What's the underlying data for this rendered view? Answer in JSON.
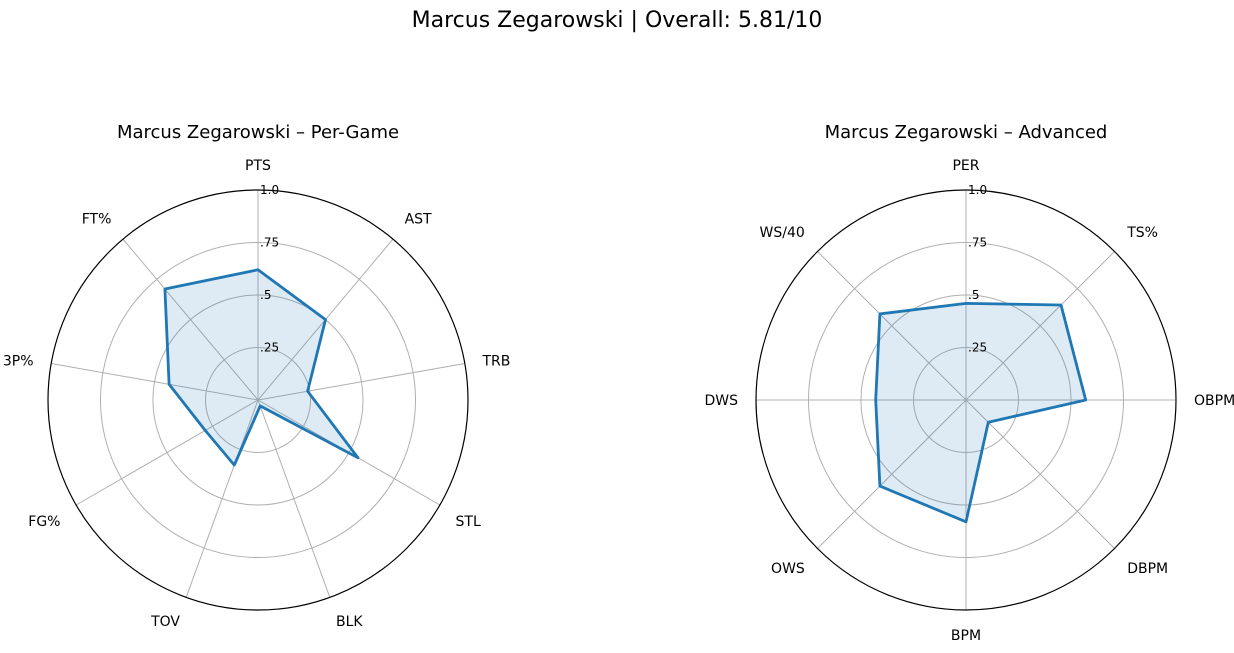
{
  "suptitle": "Marcus Zegarowski | Overall: 5.81/10",
  "colors": {
    "line": "#1f77b4",
    "fill": "#1f77b4",
    "grid": "#b0b0b0",
    "frame": "#000000"
  },
  "chart_data": [
    {
      "type": "radar",
      "title": "Marcus Zegarowski – Per-Game",
      "categories": [
        "PTS",
        "AST",
        "TRB",
        "STL",
        "BLK",
        "TOV",
        "FG%",
        "3P%",
        "FT%"
      ],
      "values": [
        0.62,
        0.5,
        0.24,
        0.55,
        0.03,
        0.33,
        0.29,
        0.43,
        0.69
      ],
      "rlim": [
        0,
        1
      ],
      "rticks": [
        0.25,
        0.5,
        0.75,
        1.0
      ],
      "rtick_labels": [
        ".25",
        ".5",
        ".75",
        "1.0"
      ],
      "grid": true
    },
    {
      "type": "radar",
      "title": "Marcus Zegarowski – Advanced",
      "categories": [
        "PER",
        "TS%",
        "OBPM",
        "DBPM",
        "BPM",
        "OWS",
        "DWS",
        "WS/40"
      ],
      "values": [
        0.46,
        0.64,
        0.57,
        0.15,
        0.58,
        0.58,
        0.43,
        0.58
      ],
      "rlim": [
        0,
        1
      ],
      "rticks": [
        0.25,
        0.5,
        0.75,
        1.0
      ],
      "rtick_labels": [
        ".25",
        ".5",
        ".75",
        "1.0"
      ],
      "grid": true
    }
  ]
}
